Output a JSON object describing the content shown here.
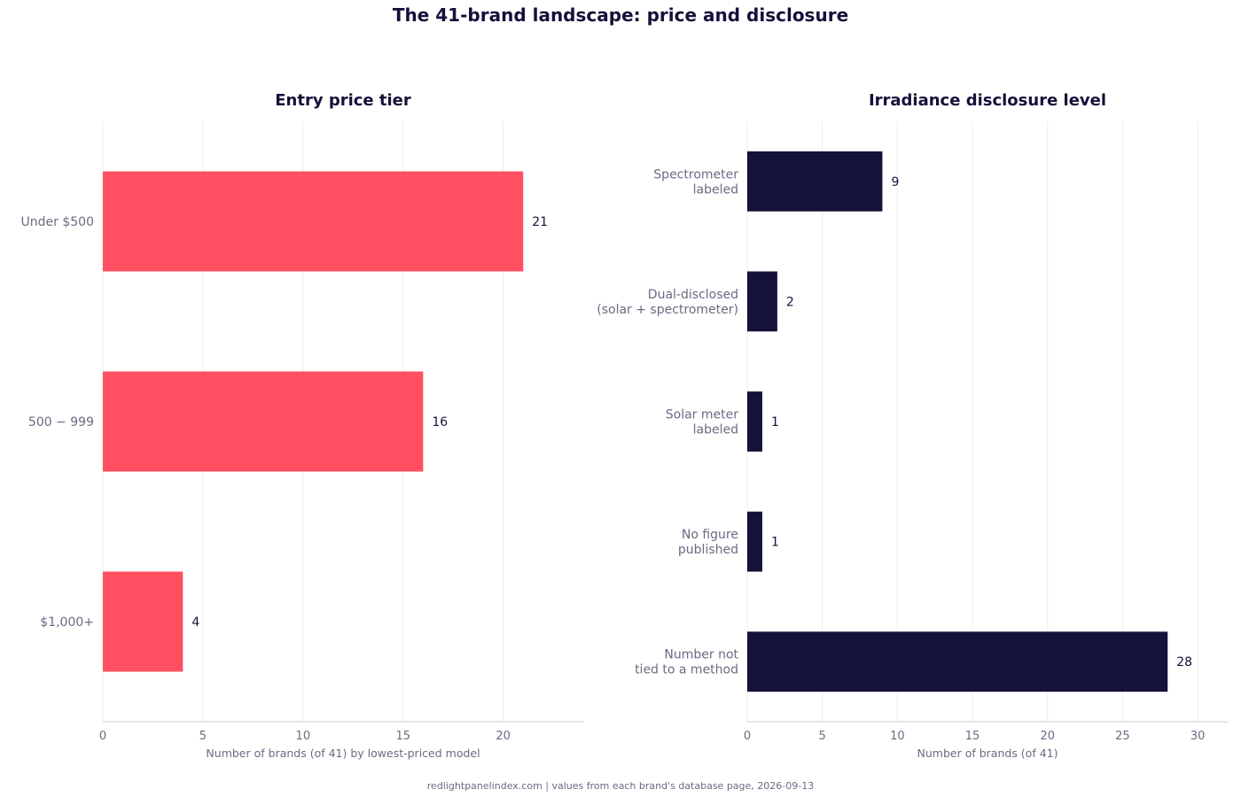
{
  "title": "The 41-brand landscape: price and disclosure",
  "footer": "redlightpanelindex.com | values from each brand's database page, 2026-09-13",
  "colors": {
    "price_bar": "#ff4f60",
    "disclosure_bar": "#14113a",
    "text_dark": "#14113a",
    "text_muted": "#6c6a82",
    "grid": "#ebebeb"
  },
  "chart_data": [
    {
      "type": "bar",
      "orientation": "horizontal",
      "title": "Entry price tier",
      "xlabel": "Number of brands (of 41) by lowest-priced model",
      "ylabel": "",
      "categories": [
        "Under $500",
        "500 − 999",
        "$1,000+"
      ],
      "values": [
        21,
        16,
        4
      ],
      "xlim": [
        0,
        24
      ],
      "xticks": [
        0,
        5,
        10,
        15,
        20
      ],
      "grid": true,
      "color": "#ff4f60"
    },
    {
      "type": "bar",
      "orientation": "horizontal",
      "title": "Irradiance disclosure level",
      "xlabel": "Number of brands (of 41)",
      "ylabel": "",
      "categories": [
        [
          "Spectrometer",
          "labeled"
        ],
        [
          "Dual-disclosed",
          "(solar + spectrometer)"
        ],
        [
          "Solar meter",
          "labeled"
        ],
        [
          "No figure",
          "published"
        ],
        [
          "Number not",
          "tied to a method"
        ]
      ],
      "values": [
        9,
        2,
        1,
        1,
        28
      ],
      "xlim": [
        0,
        32
      ],
      "xticks": [
        0,
        5,
        10,
        15,
        20,
        25,
        30
      ],
      "grid": true,
      "color": "#14113a"
    }
  ]
}
